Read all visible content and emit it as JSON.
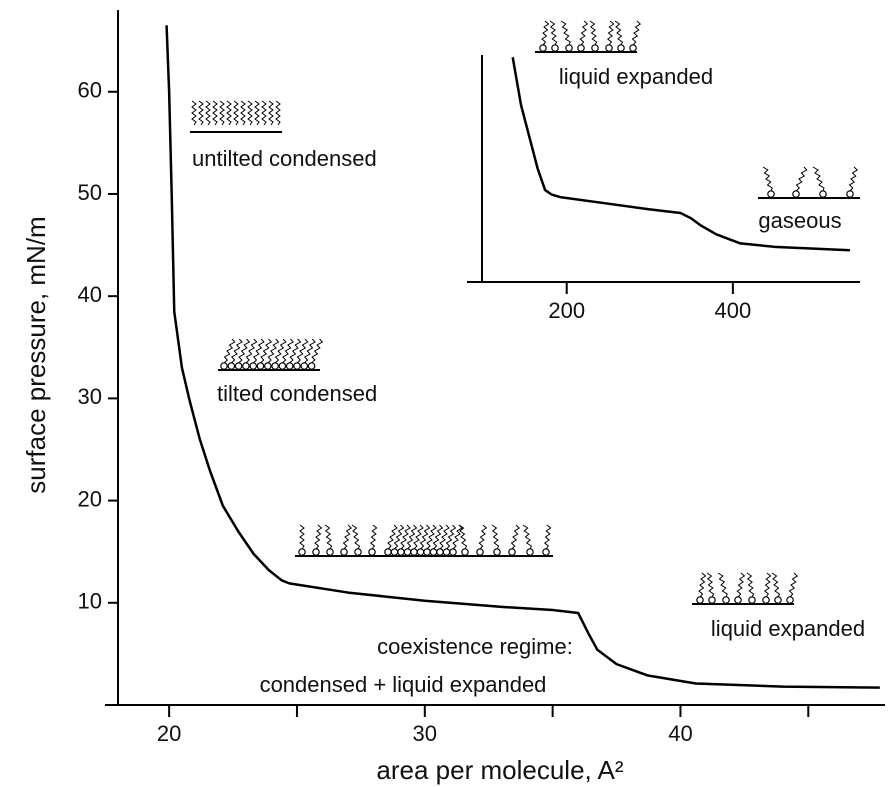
{
  "chart_data": [
    {
      "type": "line",
      "xlabel": "area per molecule, A²",
      "ylabel": "surface pressure, mN/m",
      "x": [
        19.9,
        20.0,
        20.1,
        20.2,
        20.5,
        20.8,
        21.2,
        21.6,
        22.1,
        22.7,
        23.3,
        23.9,
        24.4,
        24.7,
        27,
        30,
        33,
        35,
        36,
        36.4,
        36.75,
        37.5,
        38.7,
        40.6,
        44,
        47.8
      ],
      "series": [
        {
          "color": "#000000",
          "values": [
            66.5,
            60,
            50,
            38.5,
            33,
            29.8,
            26,
            22.9,
            19.5,
            17,
            14.8,
            13.2,
            12.2,
            11.9,
            11,
            10.2,
            9.6,
            9.3,
            9.0,
            7,
            5.4,
            4,
            2.9,
            2.1,
            1.8,
            1.7
          ]
        }
      ],
      "xlim": [
        18,
        48
      ],
      "xticks": [
        20,
        30,
        40
      ],
      "xminorticks": [
        25,
        35,
        45
      ],
      "ylim": [
        0,
        68
      ],
      "yticks": [
        10,
        20,
        30,
        40,
        50,
        60
      ],
      "annotations": [
        "untilted condensed",
        "tilted condensed",
        "coexistence regime:",
        "condensed + liquid expanded",
        "liquid expanded"
      ]
    },
    {
      "type": "line",
      "x": [
        135,
        145,
        156,
        165,
        174,
        182,
        192,
        250,
        300,
        337,
        350,
        361,
        380,
        409,
        450,
        541
      ],
      "series": [
        {
          "color": "#000000",
          "values": [
            99,
            78,
            62.6,
            50,
            40.5,
            38.5,
            37.4,
            34.5,
            32,
            30.4,
            28,
            25,
            21,
            17,
            15.5,
            14
          ]
        }
      ],
      "xlim": [
        80,
        553
      ],
      "xticks": [
        200,
        400
      ],
      "ylim": [
        0,
        100
      ],
      "annotations": [
        "liquid expanded",
        "gaseous"
      ]
    }
  ]
}
